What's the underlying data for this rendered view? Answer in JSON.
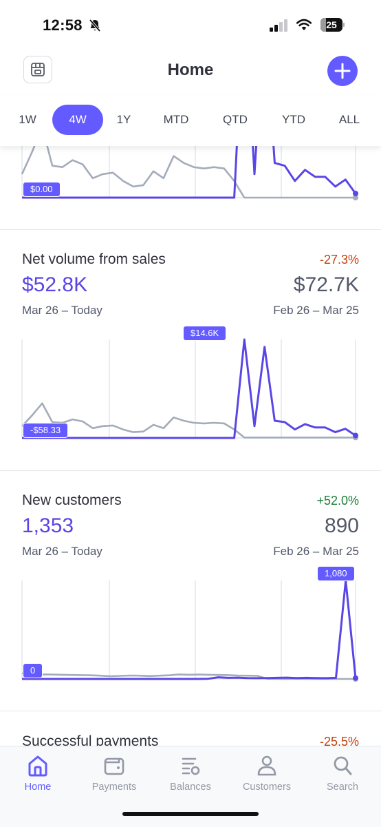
{
  "status_bar": {
    "time": "12:58",
    "battery": "25",
    "battery_level": 0.25
  },
  "header": {
    "title": "Home"
  },
  "tabs": [
    {
      "label": "1W",
      "active": false
    },
    {
      "label": "4W",
      "active": true
    },
    {
      "label": "1Y",
      "active": false
    },
    {
      "label": "MTD",
      "active": false
    },
    {
      "label": "QTD",
      "active": false
    },
    {
      "label": "YTD",
      "active": false
    },
    {
      "label": "ALL",
      "active": false
    }
  ],
  "colors": {
    "accent": "#635bff",
    "current_line": "#5a46e6",
    "previous_line": "#a3acb9",
    "positive": "#1a7f37",
    "negative": "#c2410c"
  },
  "cards": [
    {
      "title": "",
      "min_label": "$0.00",
      "chart_data": {
        "type": "line",
        "ylim": [
          0,
          14600
        ],
        "series": [
          {
            "values": [
              0,
              0,
              0,
              0,
              0,
              0,
              0,
              0,
              0,
              0,
              0,
              0,
              0,
              0,
              0,
              0,
              0,
              0,
              0,
              0,
              0,
              0,
              14600,
              1700,
              13500,
              2500,
              2300,
              1200,
              2000,
              1500,
              1500,
              800,
              1300,
              300
            ]
          },
          {
            "values": [
              1700,
              3300,
              5100,
              2300,
              2200,
              2700,
              2400,
              1400,
              1700,
              1800,
              1200,
              800,
              900,
              1900,
              1400,
              3000,
              2500,
              2200,
              2100,
              2200,
              2100,
              1200,
              0,
              0,
              0,
              0,
              0,
              0,
              0,
              0,
              0,
              0,
              0,
              0
            ]
          }
        ]
      }
    },
    {
      "title": "Net volume from sales",
      "change": "-27.3%",
      "current": "$52.8K",
      "previous": "$72.7K",
      "current_range": "Mar 26 – Today",
      "previous_range": "Feb 26 – Mar 25",
      "max_label": "$14.6K",
      "min_label": "-$58.33",
      "chart_data": {
        "type": "line",
        "ylim": [
          -58.33,
          14600
        ],
        "series": [
          {
            "values": [
              -58.33,
              -58.33,
              -58.33,
              -58.33,
              -58.33,
              -58.33,
              -58.33,
              -58.33,
              -58.33,
              -58.33,
              -58.33,
              -58.33,
              -58.33,
              -58.33,
              -58.33,
              -58.33,
              -58.33,
              -58.33,
              -58.33,
              -58.33,
              -58.33,
              -58.33,
              14600,
              1700,
              13500,
              2500,
              2300,
              1200,
              2000,
              1500,
              1500,
              800,
              1300,
              300
            ]
          },
          {
            "values": [
              1700,
              3300,
              5100,
              2300,
              2200,
              2700,
              2400,
              1400,
              1700,
              1800,
              1200,
              800,
              900,
              1900,
              1400,
              3000,
              2500,
              2200,
              2100,
              2200,
              2100,
              1200,
              0,
              0,
              0,
              0,
              0,
              0,
              0,
              0,
              0,
              0,
              0,
              0
            ]
          }
        ]
      }
    },
    {
      "title": "New customers",
      "change": "+52.0%",
      "current": "1,353",
      "previous": "890",
      "current_range": "Mar 26 – Today",
      "previous_range": "Feb 26 – Mar 25",
      "max_label": "1,080",
      "min_label": "0",
      "chart_data": {
        "type": "line",
        "ylim": [
          0,
          1080
        ],
        "series": [
          {
            "values": [
              0,
              0,
              0,
              0,
              0,
              0,
              0,
              0,
              0,
              0,
              0,
              0,
              0,
              0,
              0,
              0,
              0,
              0,
              0,
              2,
              18,
              12,
              14,
              10,
              8,
              10,
              12,
              14,
              10,
              12,
              10,
              8,
              12,
              1080,
              10
            ]
          },
          {
            "values": [
              62,
              48,
              50,
              48,
              46,
              44,
              42,
              40,
              36,
              30,
              34,
              38,
              36,
              32,
              36,
              40,
              50,
              46,
              48,
              46,
              44,
              42,
              38,
              36,
              34,
              2,
              0,
              0,
              2,
              0,
              0,
              0,
              0,
              0,
              0
            ]
          }
        ]
      }
    },
    {
      "title": "Successful payments",
      "change": "-25.5%"
    }
  ],
  "tabbar": [
    {
      "label": "Home",
      "icon": "home-icon",
      "active": true
    },
    {
      "label": "Payments",
      "icon": "wallet-icon",
      "active": false
    },
    {
      "label": "Balances",
      "icon": "balances-icon",
      "active": false
    },
    {
      "label": "Customers",
      "icon": "person-icon",
      "active": false
    },
    {
      "label": "Search",
      "icon": "search-icon",
      "active": false
    }
  ]
}
